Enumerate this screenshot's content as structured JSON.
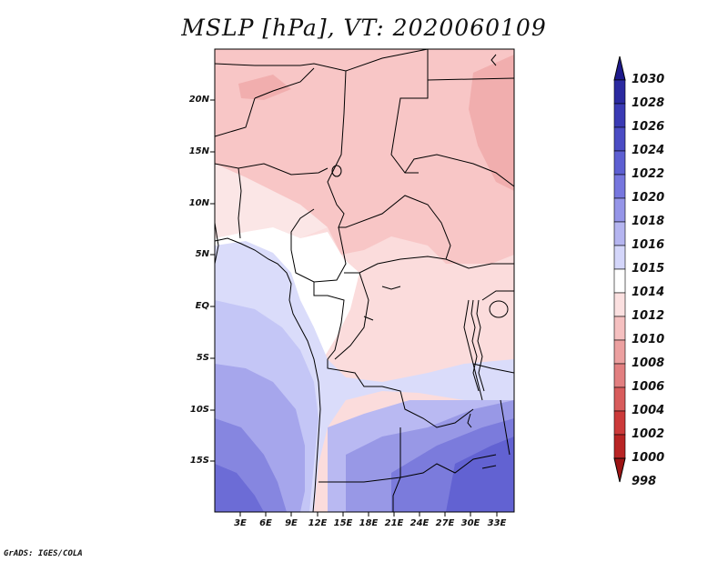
{
  "title": "MSLP [hPa], VT: 2020060109",
  "credit": "GrADS: IGES/COLA",
  "lat_labels": [
    "20N",
    "15N",
    "10N",
    "5N",
    "EQ",
    "5S",
    "10S",
    "15S"
  ],
  "lon_labels": [
    "3E",
    "6E",
    "9E",
    "12E",
    "15E",
    "18E",
    "21E",
    "24E",
    "27E",
    "30E",
    "33E"
  ],
  "colorbar": {
    "levels": [
      "1030",
      "1028",
      "1026",
      "1024",
      "1022",
      "1020",
      "1018",
      "1016",
      "1015",
      "1014",
      "1012",
      "1010",
      "1008",
      "1006",
      "1004",
      "1002",
      "1000",
      "998"
    ],
    "colors": [
      "#1e1a8c",
      "#2b2aa0",
      "#3a3ab4",
      "#4b4cc4",
      "#5d5fd2",
      "#7676de",
      "#9595e8",
      "#b5b5f0",
      "#d4d6fa",
      "#ffffff",
      "#fbe0e0",
      "#f5c0c0",
      "#eca0a0",
      "#e27f80",
      "#d85c5c",
      "#cc3a3a",
      "#b82424",
      "#9c1414"
    ]
  }
}
